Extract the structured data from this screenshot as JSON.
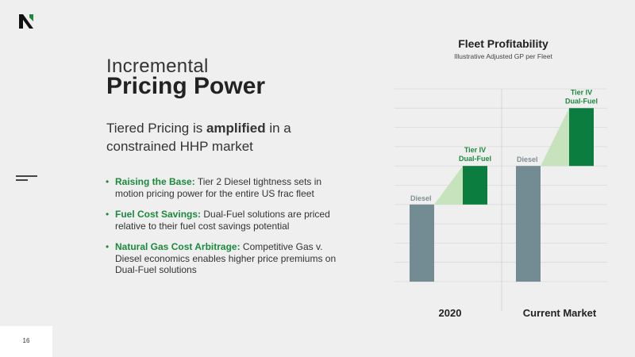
{
  "brand": {
    "accent": "#1b8a3c",
    "dark_green": "#0b7d3e",
    "light_green": "#c6e3bd",
    "diesel_gray": "#738b92"
  },
  "header": {
    "title_light": "Incremental",
    "title_bold": "Pricing Power"
  },
  "subtitle": {
    "before": "Tiered Pricing is ",
    "bold": "amplified",
    "after": " in a constrained HHP market"
  },
  "bullets": [
    {
      "label": "Raising the Base:",
      "text": " Tier 2 Diesel tightness sets in motion pricing power for the entire US frac fleet"
    },
    {
      "label": "Fuel Cost Savings:",
      "text": " Dual-Fuel solutions are priced relative to their fuel cost savings potential"
    },
    {
      "label": "Natural Gas Cost Arbitrage:",
      "text": " Competitive Gas v. Diesel economics enables higher price premiums on Dual-Fuel solutions"
    }
  ],
  "footer": {
    "page_number": "16"
  },
  "chart_data": {
    "type": "bar",
    "title": "Fleet Profitability",
    "subtitle": "Illustrative Adjusted GP per Fleet",
    "categories": [
      "2020",
      "Current Market"
    ],
    "series": [
      {
        "name": "Diesel",
        "values": [
          4,
          6
        ]
      },
      {
        "name": "Tier IV Dual-Fuel",
        "values": [
          2,
          3
        ]
      }
    ],
    "bar_labels": {
      "diesel": "Diesel",
      "dual_fuel_line1": "Tier IV",
      "dual_fuel_line2": "Dual-Fuel"
    },
    "stacking": "waterfall",
    "grid": true,
    "legend": "none",
    "ylim": [
      0,
      10
    ]
  }
}
